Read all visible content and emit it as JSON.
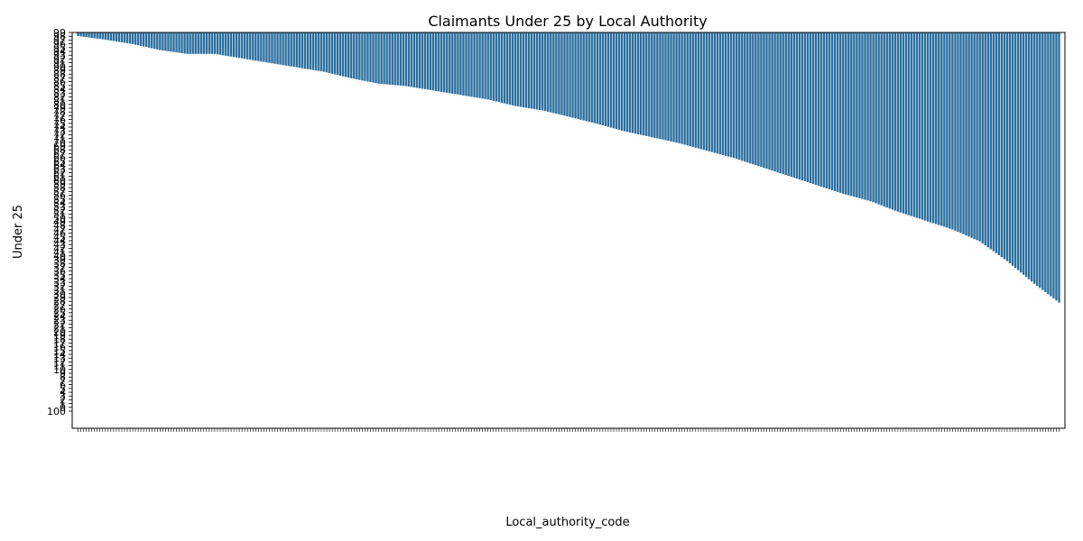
{
  "chart_data": {
    "type": "bar",
    "title": "Claimants Under 25 by Local Authority",
    "xlabel": "Local_authority_code",
    "ylabel": "Under 25",
    "bar_color": "#2b6f9e",
    "grid": false,
    "legend": "none",
    "ylim_top": "99",
    "ylim_bottom": "100",
    "y_tick_labels": [
      "99",
      "98",
      "97",
      "96",
      "95",
      "94",
      "93",
      "92",
      "91",
      "90",
      "89",
      "88",
      "87",
      "86",
      "85",
      "84",
      "83",
      "82",
      "81",
      "80",
      "79",
      "78",
      "77",
      "76",
      "75",
      "74",
      "73",
      "72",
      "71",
      "70",
      "69",
      "68",
      "67",
      "66",
      "65",
      "64",
      "63",
      "62",
      "61",
      "60",
      "59",
      "58",
      "57",
      "56",
      "55",
      "54",
      "53",
      "52",
      "51",
      "50",
      "49",
      "48",
      "47",
      "46",
      "45",
      "44",
      "43",
      "42",
      "41",
      "40",
      "39",
      "38",
      "37",
      "36",
      "35",
      "34",
      "33",
      "32",
      "31",
      "30",
      "29",
      "28",
      "27",
      "26",
      "25",
      "24",
      "23",
      "22",
      "21",
      "20",
      "19",
      "18",
      "17",
      "16",
      "15",
      "14",
      "13",
      "12",
      "11",
      "10",
      "9",
      "8",
      "7",
      "6",
      "5",
      "4",
      "3",
      "2",
      "1",
      "0",
      "100"
    ],
    "bar_count": 360,
    "bar_profile": [
      [
        0,
        0.0
      ],
      [
        10,
        0.012
      ],
      [
        20,
        0.027
      ],
      [
        30,
        0.047
      ],
      [
        40,
        0.06
      ],
      [
        50,
        0.06
      ],
      [
        60,
        0.075
      ],
      [
        70,
        0.09
      ],
      [
        80,
        0.105
      ],
      [
        90,
        0.12
      ],
      [
        100,
        0.142
      ],
      [
        110,
        0.16
      ],
      [
        120,
        0.168
      ],
      [
        130,
        0.183
      ],
      [
        140,
        0.198
      ],
      [
        150,
        0.213
      ],
      [
        160,
        0.235
      ],
      [
        170,
        0.25
      ],
      [
        180,
        0.272
      ],
      [
        190,
        0.295
      ],
      [
        200,
        0.32
      ],
      [
        210,
        0.34
      ],
      [
        220,
        0.36
      ],
      [
        230,
        0.385
      ],
      [
        240,
        0.41
      ],
      [
        250,
        0.44
      ],
      [
        260,
        0.47
      ],
      [
        270,
        0.5
      ],
      [
        280,
        0.53
      ],
      [
        290,
        0.555
      ],
      [
        300,
        0.59
      ],
      [
        310,
        0.62
      ],
      [
        320,
        0.65
      ],
      [
        330,
        0.69
      ],
      [
        340,
        0.72
      ],
      [
        350,
        0.76
      ],
      [
        359,
        0.79
      ]
    ]
  }
}
